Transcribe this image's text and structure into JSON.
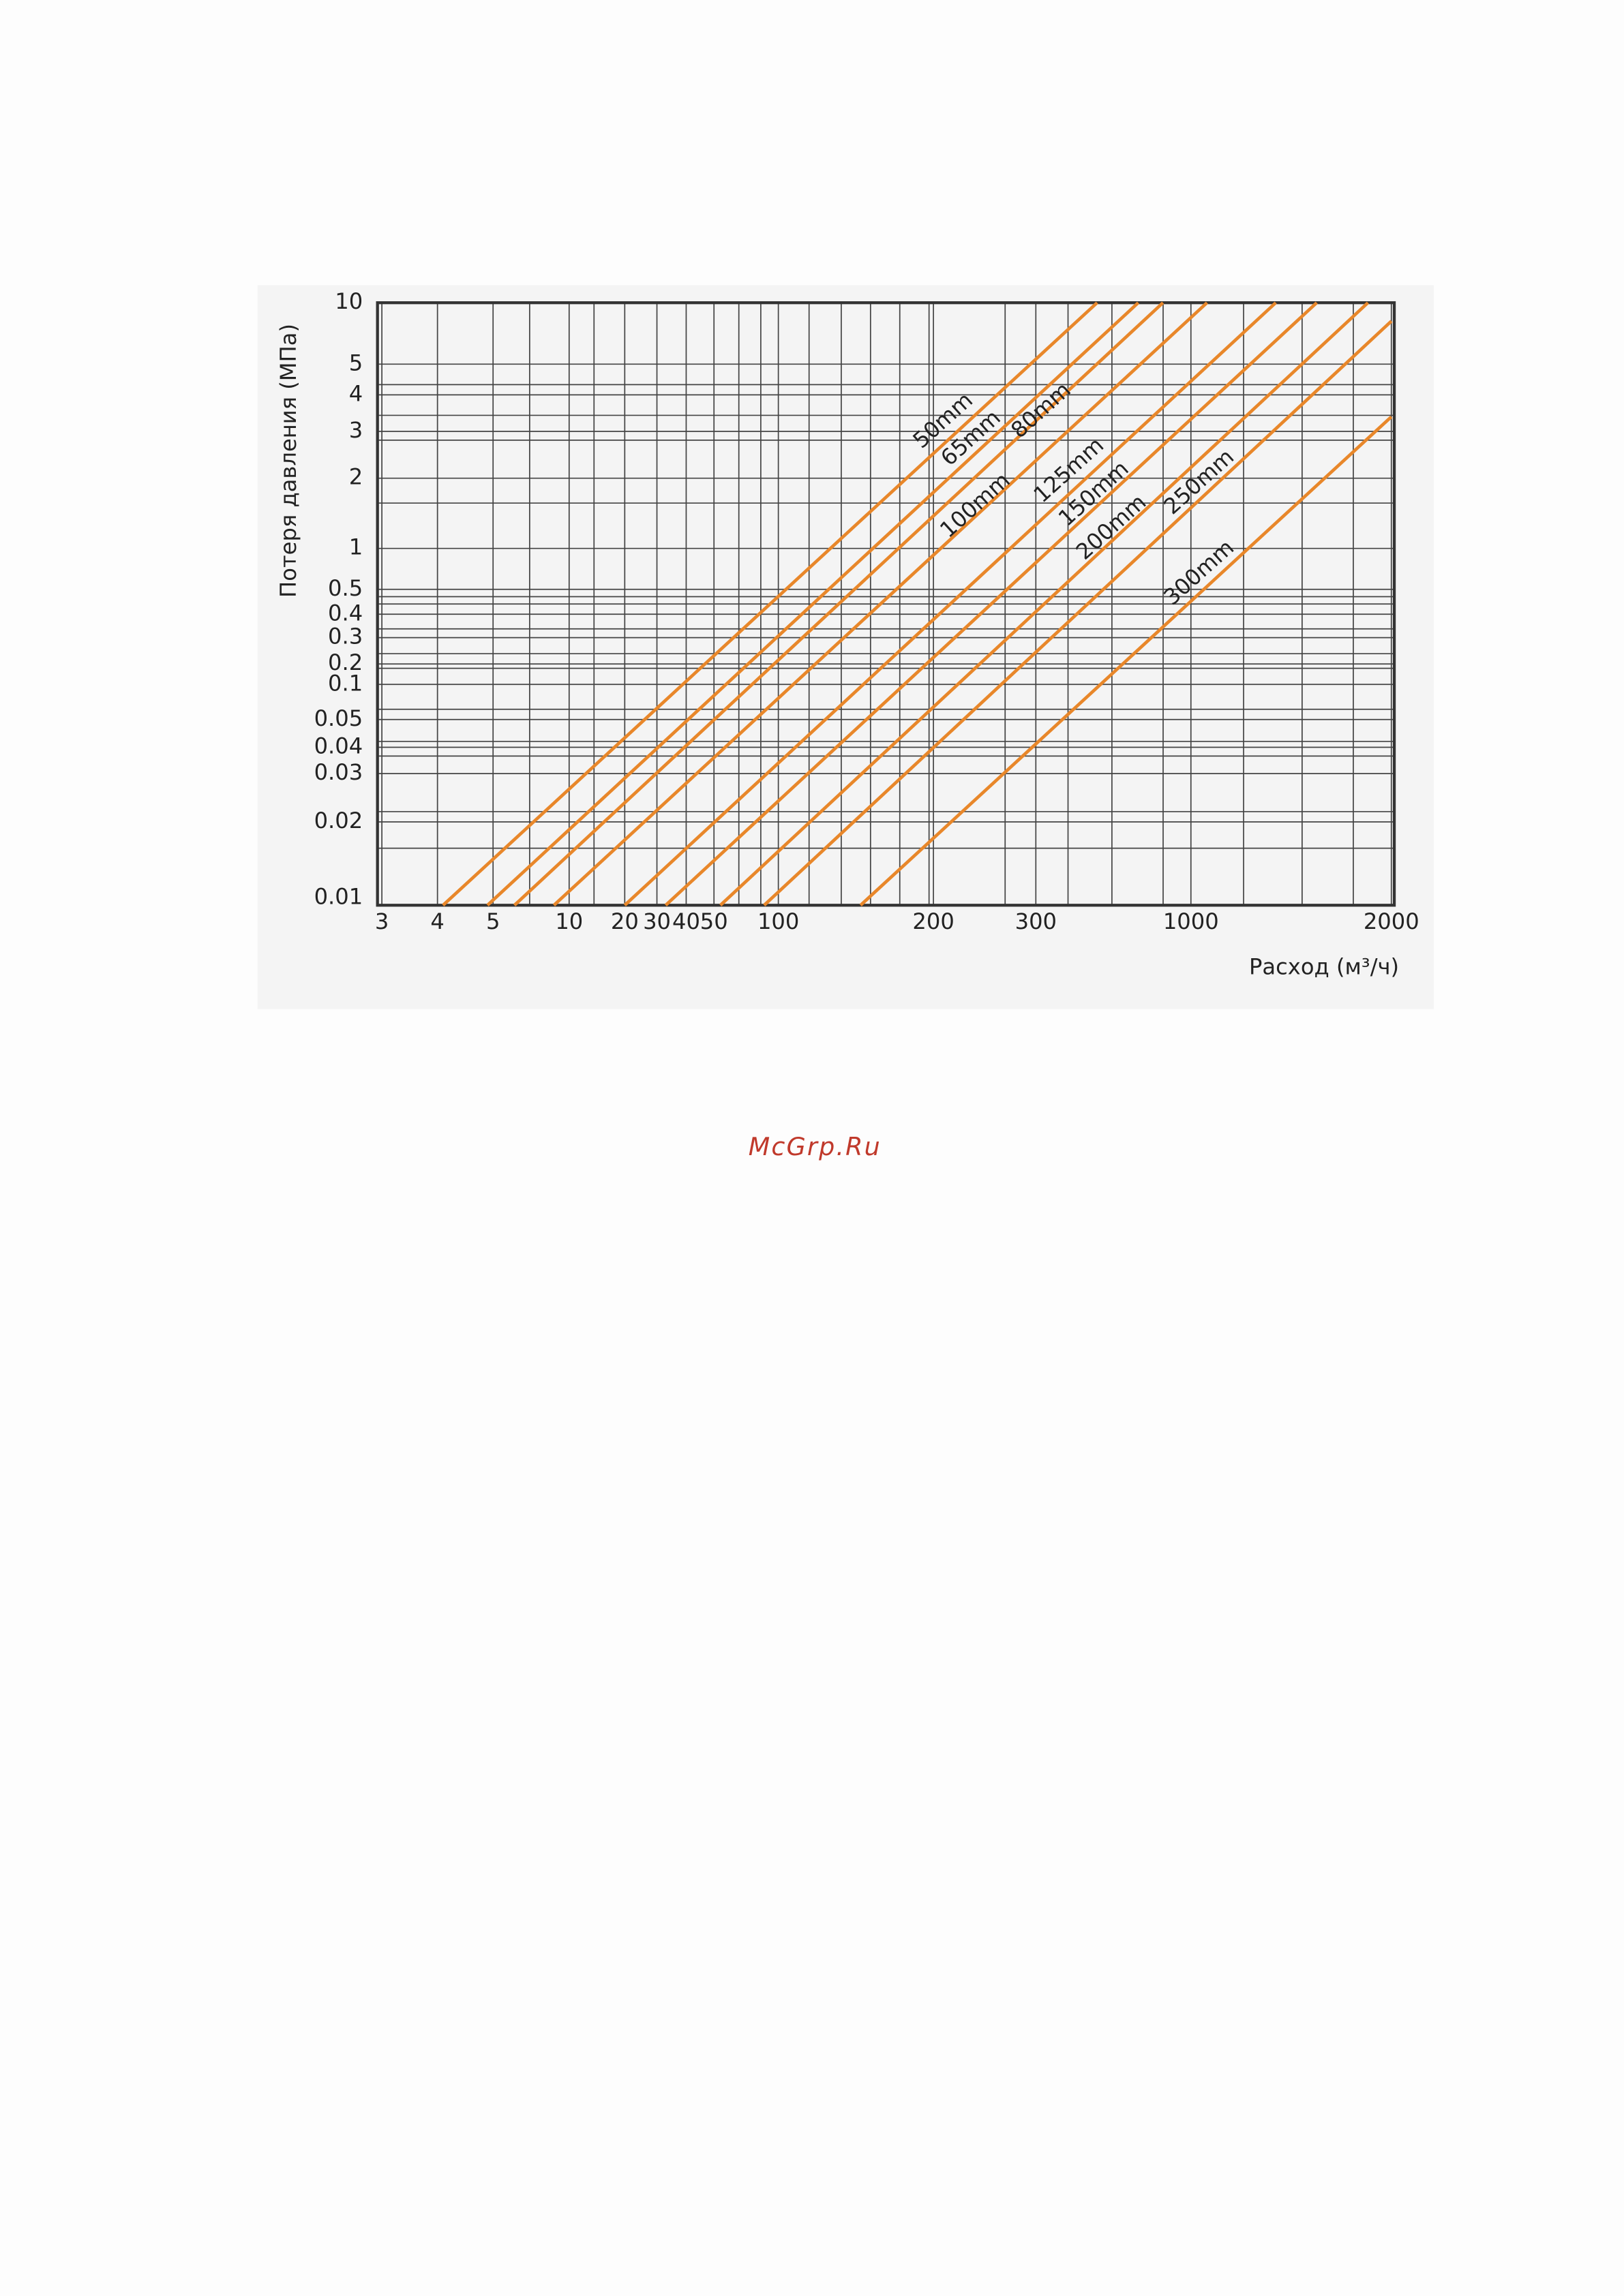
{
  "chart_data": {
    "type": "line",
    "y_label": "Потеря давления (МПа)",
    "x_label": "Расход (м³/ч)",
    "xticks": [
      3,
      4,
      5,
      10,
      20,
      30,
      40,
      50,
      100,
      200,
      300,
      1000,
      2000
    ],
    "yticks": [
      10,
      5,
      4,
      3,
      2,
      1,
      0.5,
      0.4,
      0.3,
      0.2,
      0.1,
      0.05,
      0.04,
      0.03,
      0.02,
      0.01
    ],
    "color": "#e8872a",
    "grid": true,
    "series": [
      {
        "name": "50mm",
        "x": [
          4.1,
          577
        ],
        "values": [
          0.01,
          10
        ]
      },
      {
        "name": "65mm",
        "x": [
          4.9,
          762
        ],
        "values": [
          0.01,
          10
        ]
      },
      {
        "name": "80mm",
        "x": [
          6.4,
          874
        ],
        "values": [
          0.01,
          10
        ]
      },
      {
        "name": "100mm",
        "x": [
          9,
          1080
        ],
        "values": [
          0.01,
          10
        ]
      },
      {
        "name": "125mm",
        "x": [
          20,
          1423
        ],
        "values": [
          0.01,
          10
        ]
      },
      {
        "name": "150mm",
        "x": [
          33,
          1628
        ],
        "values": [
          0.01,
          10
        ]
      },
      {
        "name": "200mm",
        "x": [
          55,
          1883
        ],
        "values": [
          0.01,
          10
        ]
      },
      {
        "name": "250mm",
        "x": [
          89,
          2000
        ],
        "values": [
          0.01,
          8.5
        ]
      },
      {
        "name": "300mm",
        "x": [
          153,
          2000
        ],
        "values": [
          0.01,
          3.4
        ]
      }
    ]
  },
  "watermark": "McGrp.Ru"
}
